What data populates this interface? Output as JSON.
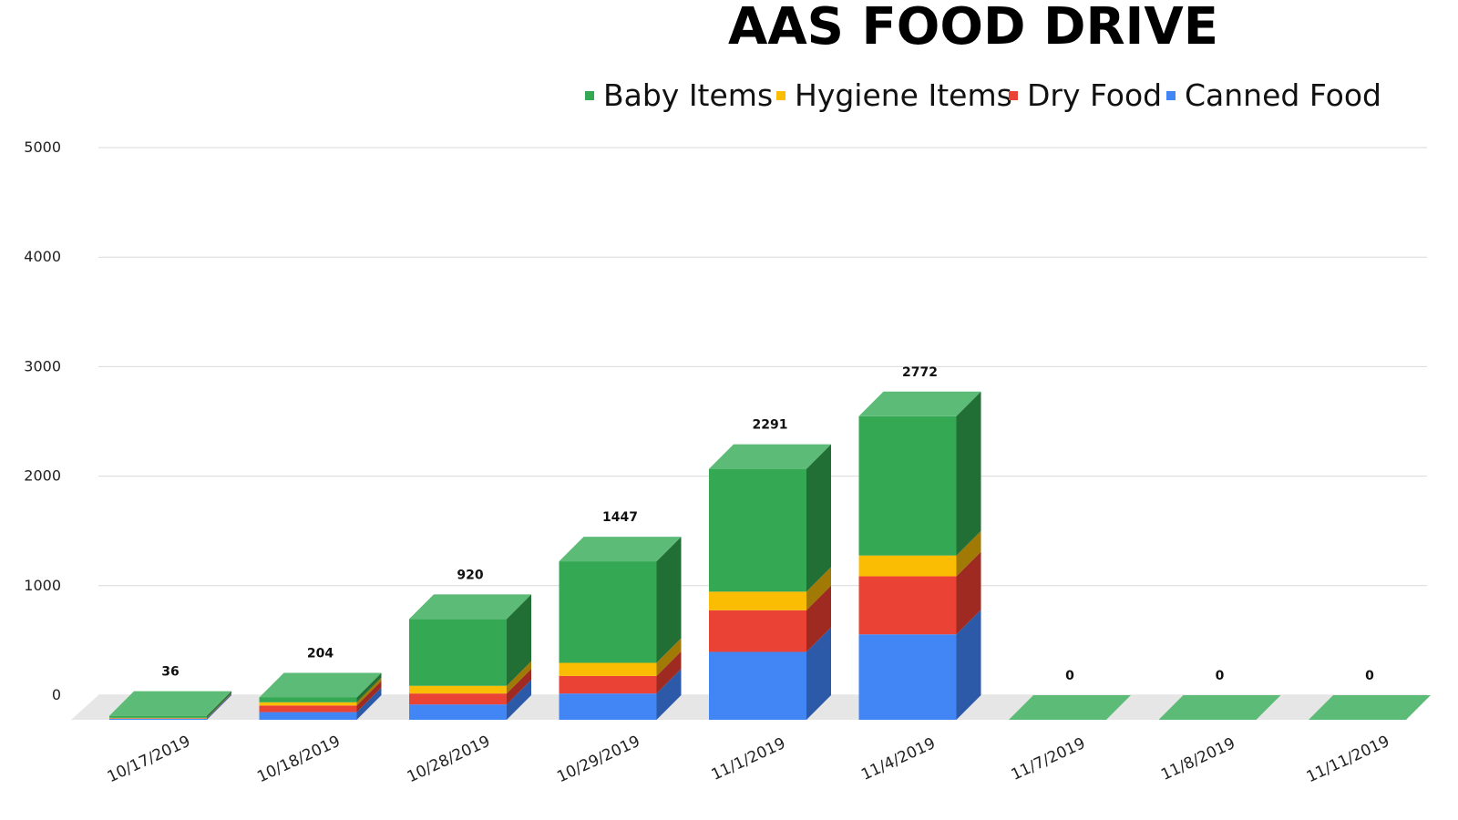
{
  "chart_data": {
    "type": "bar",
    "stacked": true,
    "style": "3d",
    "title": "AAS FOOD DRIVE",
    "xlabel": "",
    "ylabel": "",
    "ylim": [
      0,
      5000
    ],
    "yticks": [
      0,
      1000,
      2000,
      3000,
      4000,
      5000
    ],
    "grid": true,
    "legend_position": "top-right",
    "categories": [
      "10/17/2019",
      "10/18/2019",
      "10/28/2019",
      "10/29/2019",
      "11/1/2019",
      "11/4/2019",
      "11/7/2019",
      "11/8/2019",
      "11/11/2019"
    ],
    "series": [
      {
        "name": "Canned Food",
        "color": "#4285f4",
        "side_color": "#2d5aa8",
        "values": [
          10,
          70,
          140,
          240,
          620,
          780,
          0,
          0,
          0
        ]
      },
      {
        "name": "Dry Food",
        "color": "#ea4335",
        "side_color": "#9e2a22",
        "values": [
          4,
          60,
          100,
          160,
          380,
          530,
          0,
          0,
          0
        ]
      },
      {
        "name": "Hygiene Items",
        "color": "#fbbc04",
        "side_color": "#a07a05",
        "values": [
          4,
          30,
          70,
          120,
          170,
          190,
          0,
          0,
          0
        ]
      },
      {
        "name": "Baby Items",
        "color": "#34a853",
        "side_color": "#226f36",
        "top_color": "#5cbb76",
        "values": [
          18,
          44,
          610,
          927,
          1121,
          1272,
          0,
          0,
          0
        ]
      }
    ],
    "totals": [
      "36",
      "204",
      "920",
      "1447",
      "2291",
      "2772",
      "0",
      "0",
      "0"
    ]
  }
}
